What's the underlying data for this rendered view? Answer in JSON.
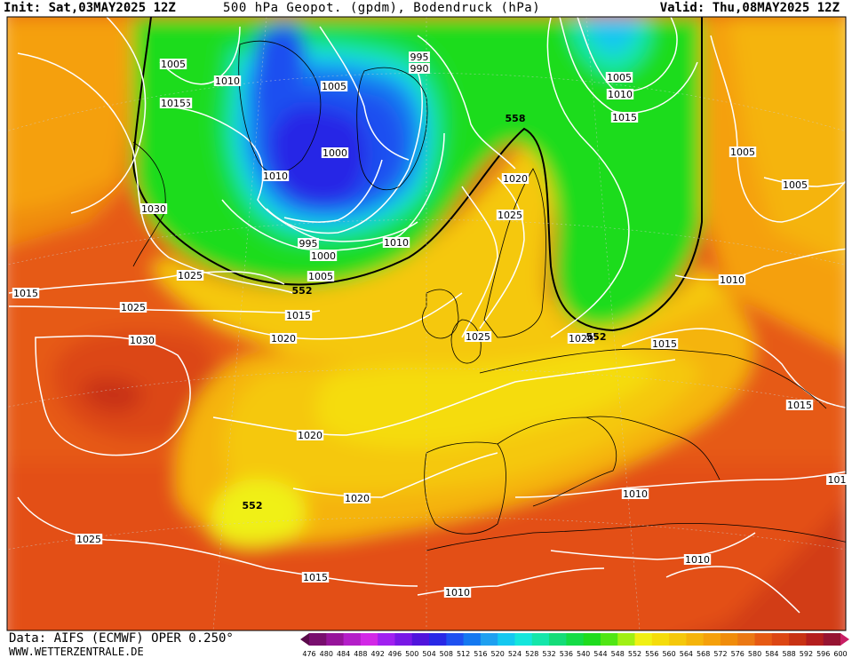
{
  "header": {
    "init": "Init: Sat,03MAY2025 12Z",
    "title": "500 hPa Geopot. (gpdm), Bodendruck (hPa)",
    "valid": "Valid: Thu,08MAY2025 12Z"
  },
  "footer": {
    "data": "Data: AIFS (ECMWF) OPER 0.250°",
    "url": "WWW.WETTERZENTRALE.DE"
  },
  "isobar_labels": [
    "1005",
    "1010",
    "1015",
    "1030",
    "1025",
    "1015",
    "1025",
    "1030",
    "1015",
    "1020",
    "995",
    "990",
    "1005",
    "1000",
    "1010",
    "995",
    "1000",
    "1005",
    "1010",
    "1020",
    "1025",
    "1020",
    "1025",
    "1020",
    "1005",
    "1010",
    "1015",
    "1005",
    "1005",
    "1010",
    "1015",
    "1015",
    "1020",
    "1015",
    "1010",
    "1025",
    "1015",
    "1010",
    "1010",
    "101"
  ],
  "geopotential_labels": [
    "558",
    "552",
    "552",
    "552"
  ],
  "colorbar": {
    "ticks": [
      "476",
      "480",
      "484",
      "488",
      "492",
      "496",
      "500",
      "504",
      "508",
      "512",
      "516",
      "520",
      "524",
      "528",
      "532",
      "536",
      "540",
      "544",
      "548",
      "552",
      "556",
      "560",
      "564",
      "568",
      "572",
      "576",
      "580",
      "584",
      "588",
      "592",
      "596",
      "600"
    ],
    "colors": [
      "#5a0a4a",
      "#780e6e",
      "#96149a",
      "#b41ec8",
      "#d228e6",
      "#a020f0",
      "#7818e6",
      "#5014dc",
      "#2828e6",
      "#1e50f0",
      "#1478f0",
      "#1ea0f0",
      "#14c8f0",
      "#14e6dc",
      "#14e6aa",
      "#14dc78",
      "#14dc46",
      "#1edc1e",
      "#50e614",
      "#a0f014",
      "#f0f014",
      "#f5dc0a",
      "#f5c80a",
      "#f5b40a",
      "#f5a00a",
      "#f08c0a",
      "#eb7814",
      "#e65a14",
      "#dc4614",
      "#c83214",
      "#b41e1e",
      "#961432",
      "#c81e64"
    ]
  },
  "colors": {
    "frame": "#000000",
    "isobar": "#ffffff",
    "contour_552": "#000000"
  }
}
